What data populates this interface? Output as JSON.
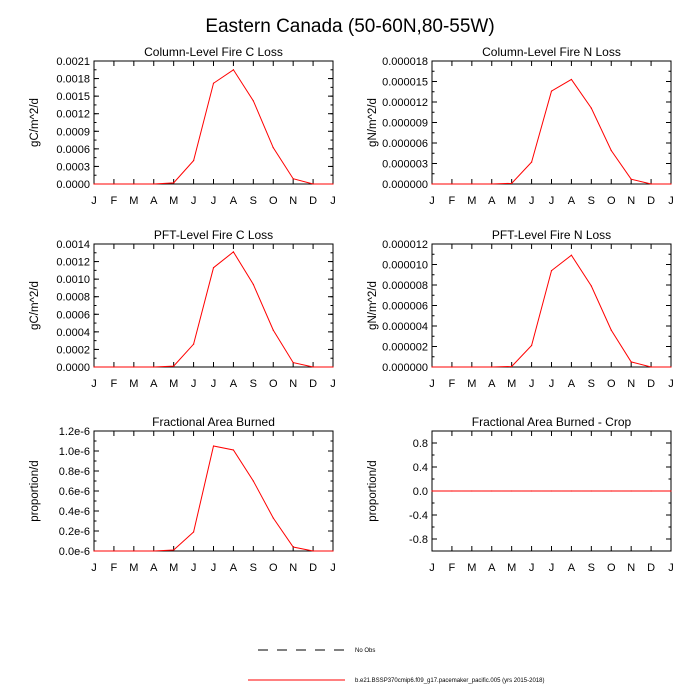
{
  "figure": {
    "title": "Eastern Canada (50-60N,80-55W)"
  },
  "months": [
    "J",
    "F",
    "M",
    "A",
    "M",
    "J",
    "J",
    "A",
    "S",
    "O",
    "N",
    "D",
    "J"
  ],
  "legend": [
    {
      "label": "No Obs",
      "style": "dashed",
      "color": "#000000"
    },
    {
      "label": "b.e21.BSSP370cmip6.f09_g17.pacemaker_pacific.005 (yrs 2015-2018)",
      "style": "solid",
      "color": "#ff0000"
    }
  ],
  "colors": {
    "series": "#ff0000",
    "axes": "#000000"
  },
  "chart_data": [
    {
      "type": "line",
      "title": "Column-Level Fire C Loss",
      "ylabel": "gC/m^2/d",
      "ylim": [
        0,
        0.0021
      ],
      "yticks": [
        0,
        0.0003,
        0.0006,
        0.0009,
        0.0012,
        0.0015,
        0.0018,
        0.0021
      ],
      "ytick_labels": [
        "0.0000",
        "0.0003",
        "0.0006",
        "0.0009",
        "0.0012",
        "0.0015",
        "0.0018",
        "0.0021"
      ],
      "values": [
        0,
        0,
        0,
        0,
        2e-05,
        0.0004,
        0.00172,
        0.00195,
        0.00142,
        0.00062,
        9e-05,
        0,
        0
      ]
    },
    {
      "type": "line",
      "title": "Column-Level Fire N Loss",
      "ylabel": "gN/m^2/d",
      "ylim": [
        0,
        1.8e-05
      ],
      "yticks": [
        0,
        3e-06,
        6e-06,
        9e-06,
        1.2e-05,
        1.5e-05,
        1.8e-05
      ],
      "ytick_labels": [
        "0.000000",
        "0.000003",
        "0.000006",
        "0.000009",
        "0.000012",
        "0.000015",
        "0.000018"
      ],
      "values": [
        0,
        0,
        0,
        0,
        1e-07,
        3.2e-06,
        1.36e-05,
        1.53e-05,
        1.11e-05,
        4.9e-06,
        7e-07,
        0,
        0
      ]
    },
    {
      "type": "line",
      "title": "PFT-Level Fire C Loss",
      "ylabel": "gC/m^2/d",
      "ylim": [
        0,
        0.0014
      ],
      "yticks": [
        0,
        0.0002,
        0.0004,
        0.0006,
        0.0008,
        0.001,
        0.0012,
        0.0014
      ],
      "ytick_labels": [
        "0.0000",
        "0.0002",
        "0.0004",
        "0.0006",
        "0.0008",
        "0.0010",
        "0.0012",
        "0.0014"
      ],
      "values": [
        0,
        0,
        0,
        0,
        1e-05,
        0.00026,
        0.00113,
        0.00131,
        0.00094,
        0.00042,
        5e-05,
        0,
        0
      ]
    },
    {
      "type": "line",
      "title": "PFT-Level Fire N Loss",
      "ylabel": "gN/m^2/d",
      "ylim": [
        0,
        1.2e-05
      ],
      "yticks": [
        0,
        2e-06,
        4e-06,
        6e-06,
        8e-06,
        1e-05,
        1.2e-05
      ],
      "ytick_labels": [
        "0.000000",
        "0.000002",
        "0.000004",
        "0.000006",
        "0.000008",
        "0.000010",
        "0.000012"
      ],
      "values": [
        0,
        0,
        0,
        0,
        5e-08,
        2.1e-06,
        9.4e-06,
        1.09e-05,
        7.9e-06,
        3.6e-06,
        5e-07,
        0,
        0
      ]
    },
    {
      "type": "line",
      "title": "Fractional Area Burned",
      "ylabel": "proportion/d",
      "ylim": [
        0,
        1.2e-06
      ],
      "yticks": [
        0,
        2e-07,
        4e-07,
        6e-07,
        8e-07,
        1e-06,
        1.2e-06
      ],
      "ytick_labels": [
        "0.0e-6",
        "0.2e-6",
        "0.4e-6",
        "0.6e-6",
        "0.8e-6",
        "1.0e-6",
        "1.2e-6"
      ],
      "values": [
        0,
        0,
        0,
        0,
        1e-08,
        1.9e-07,
        1.05e-06,
        1.01e-06,
        7e-07,
        3.3e-07,
        4e-08,
        0,
        0
      ]
    },
    {
      "type": "line",
      "title": "Fractional Area Burned - Crop",
      "ylabel": "proportion/d",
      "ylim": [
        -1,
        1
      ],
      "yticks": [
        -0.8,
        -0.4,
        0,
        0.4,
        0.8
      ],
      "ytick_labels": [
        "-0.8",
        "-0.4",
        "0.0",
        "0.4",
        "0.8"
      ],
      "values": [
        0,
        0,
        0,
        0,
        0,
        0,
        0,
        0,
        0,
        0,
        0,
        0,
        0
      ]
    }
  ]
}
